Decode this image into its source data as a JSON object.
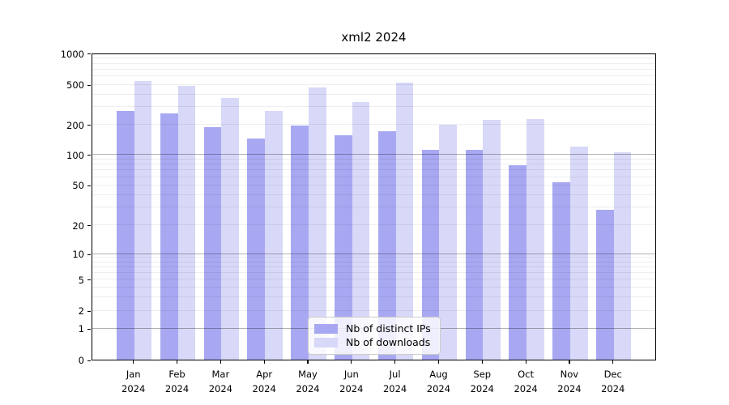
{
  "title": "xml2 2024",
  "chart_data": {
    "type": "bar",
    "title": "xml2 2024",
    "yscale": "log",
    "ylim": [
      0,
      1000
    ],
    "grid": "both",
    "legend_position": "lower center",
    "year_label": "2024",
    "months": [
      "Jan",
      "Feb",
      "Mar",
      "Apr",
      "May",
      "Jun",
      "Jul",
      "Aug",
      "Sep",
      "Oct",
      "Nov",
      "Dec"
    ],
    "categories": [
      "Jan 2024",
      "Feb 2024",
      "Mar 2024",
      "Apr 2024",
      "May 2024",
      "Jun 2024",
      "Jul 2024",
      "Aug 2024",
      "Sep 2024",
      "Oct 2024",
      "Nov 2024",
      "Dec 2024"
    ],
    "y_tick_values": [
      0,
      1,
      2,
      5,
      10,
      20,
      50,
      100,
      200,
      500,
      1000
    ],
    "y_tick_labels": [
      "0",
      "1",
      "2",
      "5",
      "10",
      "20",
      "50",
      "100",
      "200",
      "500",
      "1000"
    ],
    "series": [
      {
        "name": "Nb of distinct IPs",
        "color": "#a8a8f2",
        "values": [
          270,
          256,
          188,
          146,
          194,
          155,
          172,
          111,
          111,
          78,
          53,
          28
        ]
      },
      {
        "name": "Nb of downloads",
        "color": "#d8d8f8",
        "values": [
          540,
          480,
          368,
          272,
          465,
          335,
          515,
          200,
          222,
          225,
          120,
          105
        ]
      }
    ]
  }
}
